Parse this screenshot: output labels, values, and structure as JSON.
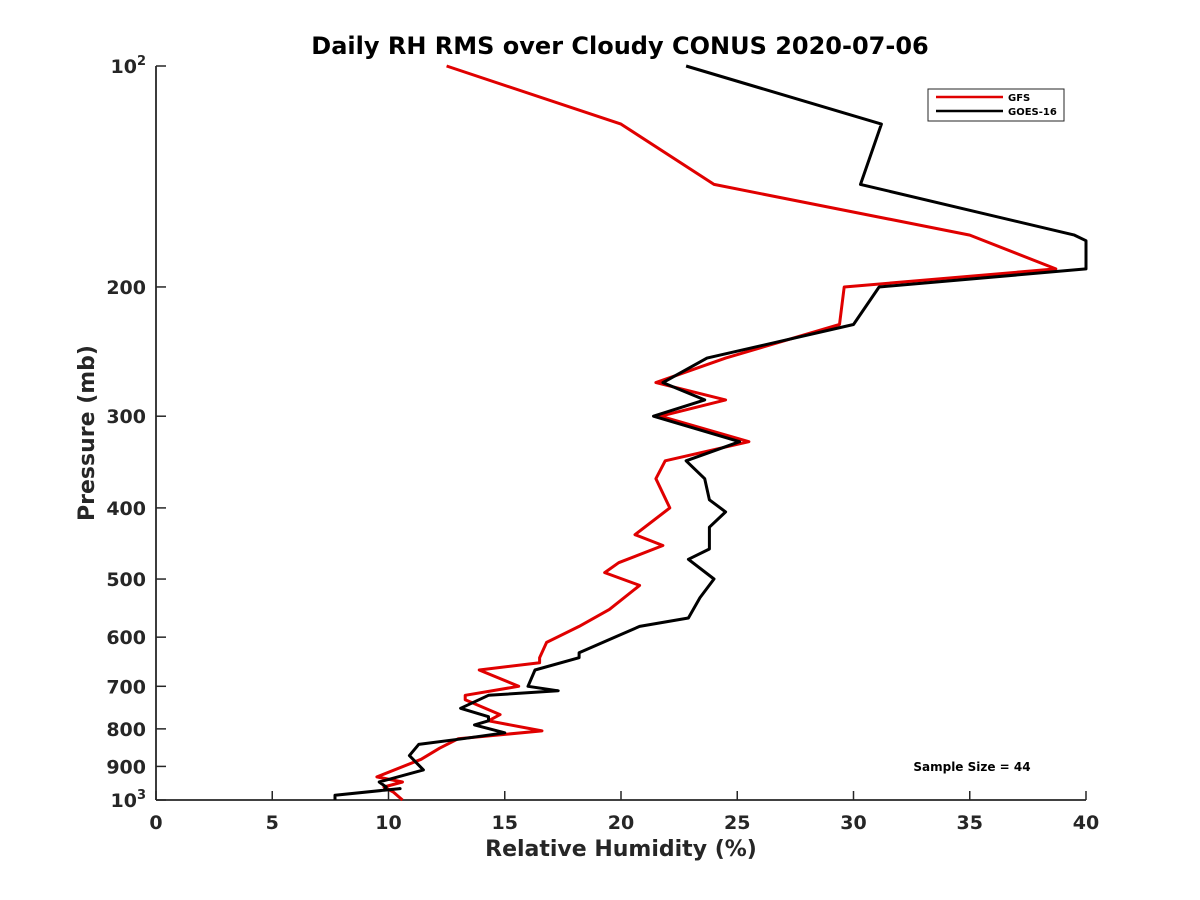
{
  "chart_data": {
    "type": "line",
    "title": "Daily RH RMS over Cloudy CONUS 2020-07-06",
    "xlabel": "Relative Humidity (%)",
    "ylabel": "Pressure (mb)",
    "xlim": [
      0,
      40
    ],
    "ylim": [
      100,
      1000
    ],
    "y_scale": "log",
    "y_reversed": true,
    "grid": false,
    "legend_position": "top-right",
    "x_ticks": [
      0,
      5,
      10,
      15,
      20,
      25,
      30,
      35,
      40
    ],
    "y_ticks": [
      {
        "value": 100,
        "label": "10",
        "sup": "2"
      },
      {
        "value": 200,
        "label": "200",
        "sup": ""
      },
      {
        "value": 300,
        "label": "300",
        "sup": ""
      },
      {
        "value": 400,
        "label": "400",
        "sup": ""
      },
      {
        "value": 500,
        "label": "500",
        "sup": ""
      },
      {
        "value": 600,
        "label": "600",
        "sup": ""
      },
      {
        "value": 700,
        "label": "700",
        "sup": ""
      },
      {
        "value": 800,
        "label": "800",
        "sup": ""
      },
      {
        "value": 900,
        "label": "900",
        "sup": ""
      },
      {
        "value": 1000,
        "label": "10",
        "sup": "3"
      }
    ],
    "annotation": "Sample Size = 44",
    "series": [
      {
        "name": "GFS",
        "color": "#e00000",
        "points": [
          [
            12.5,
            100
          ],
          [
            20,
            120
          ],
          [
            24,
            145
          ],
          [
            35,
            170
          ],
          [
            38.7,
            189
          ],
          [
            29.6,
            200
          ],
          [
            29.4,
            225
          ],
          [
            24.5,
            250
          ],
          [
            21.5,
            270
          ],
          [
            24.5,
            285
          ],
          [
            21.7,
            300
          ],
          [
            25.5,
            325
          ],
          [
            21.9,
            345
          ],
          [
            21.5,
            365
          ],
          [
            22.1,
            400
          ],
          [
            20.6,
            435
          ],
          [
            21.8,
            450
          ],
          [
            19.9,
            475
          ],
          [
            19.3,
            490
          ],
          [
            20.8,
            510
          ],
          [
            19.5,
            550
          ],
          [
            18.2,
            580
          ],
          [
            16.8,
            610
          ],
          [
            16.5,
            640
          ],
          [
            16.5,
            650
          ],
          [
            13.9,
            665
          ],
          [
            15.6,
            700
          ],
          [
            13.3,
            720
          ],
          [
            13.3,
            730
          ],
          [
            14.8,
            765
          ],
          [
            14.3,
            780
          ],
          [
            16.6,
            805
          ],
          [
            13,
            825
          ],
          [
            12.2,
            850
          ],
          [
            11.4,
            880
          ],
          [
            9.5,
            930
          ],
          [
            10.6,
            945
          ],
          [
            9.8,
            960
          ],
          [
            10.2,
            975
          ],
          [
            10.6,
            1000
          ]
        ]
      },
      {
        "name": "GOES-16",
        "color": "#000000",
        "points": [
          [
            22.8,
            100
          ],
          [
            31.2,
            120
          ],
          [
            30.3,
            145
          ],
          [
            39.5,
            170
          ],
          [
            40,
            173
          ],
          [
            40,
            189
          ],
          [
            31.1,
            200
          ],
          [
            30,
            225
          ],
          [
            23.7,
            250
          ],
          [
            21.8,
            270
          ],
          [
            23.6,
            285
          ],
          [
            21.4,
            300
          ],
          [
            25.1,
            325
          ],
          [
            22.8,
            345
          ],
          [
            23.6,
            365
          ],
          [
            23.8,
            390
          ],
          [
            24.5,
            405
          ],
          [
            23.8,
            425
          ],
          [
            23.8,
            455
          ],
          [
            22.9,
            470
          ],
          [
            24,
            500
          ],
          [
            23.4,
            530
          ],
          [
            22.9,
            565
          ],
          [
            20.8,
            580
          ],
          [
            18.2,
            630
          ],
          [
            18.2,
            640
          ],
          [
            16.3,
            665
          ],
          [
            16,
            700
          ],
          [
            17.3,
            710
          ],
          [
            14.3,
            720
          ],
          [
            13.1,
            750
          ],
          [
            14.3,
            770
          ],
          [
            14.3,
            780
          ],
          [
            13.7,
            790
          ],
          [
            15,
            810
          ],
          [
            13.2,
            825
          ],
          [
            11.3,
            840
          ],
          [
            10.9,
            870
          ],
          [
            11.5,
            910
          ],
          [
            9.6,
            945
          ],
          [
            9.9,
            960
          ],
          [
            9.8,
            970
          ],
          [
            10.5,
            965
          ],
          [
            7.7,
            985
          ],
          [
            7.7,
            1000
          ]
        ]
      }
    ]
  }
}
